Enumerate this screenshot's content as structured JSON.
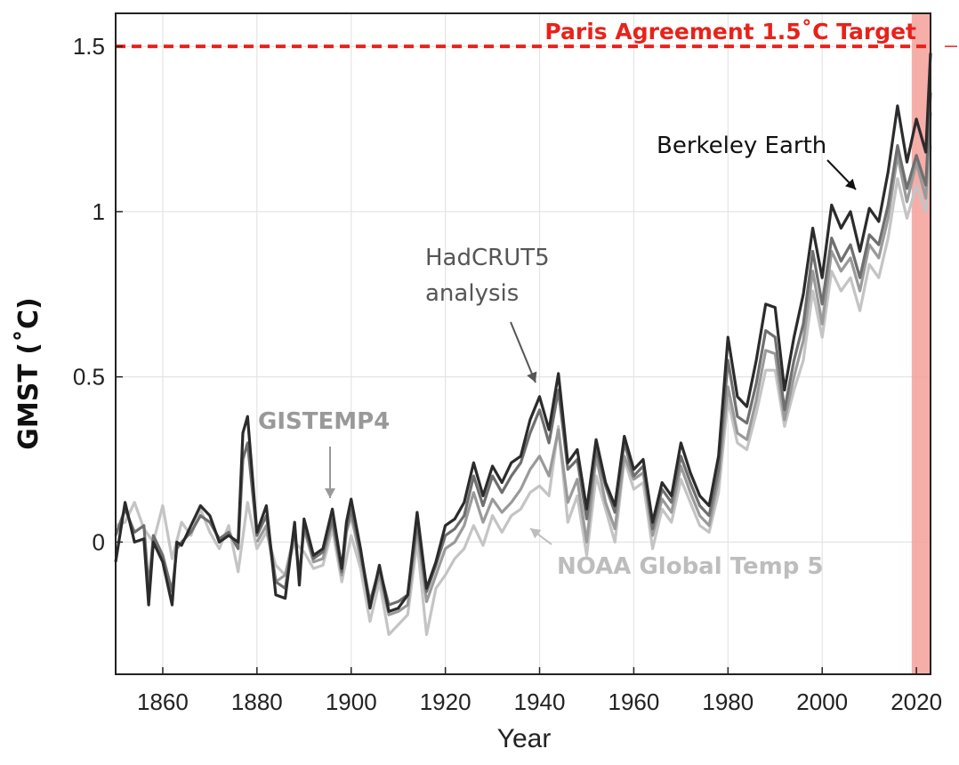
{
  "chart_data": {
    "type": "line",
    "xlabel": "Year",
    "ylabel": "GMST (˚C)",
    "xlim": [
      1850,
      2023
    ],
    "ylim": [
      -0.4,
      1.6
    ],
    "x_ticks": [
      1860,
      1880,
      1900,
      1920,
      1940,
      1960,
      1980,
      2000,
      2020
    ],
    "y_ticks": [
      {
        "value": 0,
        "label": "0"
      },
      {
        "value": 0.5,
        "label": "0.5"
      },
      {
        "value": 1,
        "label": "1"
      },
      {
        "value": 1.5,
        "label": "1.5"
      }
    ],
    "grid": true,
    "threshold": {
      "value": 1.5,
      "label": "Paris Agreement 1.5˚C Target",
      "color": "#e8221a"
    },
    "highlight_span": {
      "x_start": 2019,
      "x_end": 2023,
      "color": "#f4a09a"
    },
    "series": [
      {
        "name": "Berkeley Earth",
        "color": "#2b2b2b",
        "x": [
          1850,
          1852,
          1854,
          1856,
          1857,
          1858,
          1860,
          1862,
          1863,
          1864,
          1866,
          1868,
          1870,
          1872,
          1874,
          1876,
          1877,
          1878,
          1880,
          1882,
          1884,
          1886,
          1888,
          1889,
          1890,
          1892,
          1894,
          1896,
          1898,
          1899,
          1900,
          1902,
          1904,
          1906,
          1908,
          1910,
          1912,
          1914,
          1916,
          1918,
          1920,
          1922,
          1924,
          1926,
          1928,
          1930,
          1932,
          1934,
          1936,
          1938,
          1940,
          1942,
          1944,
          1946,
          1948,
          1950,
          1952,
          1954,
          1956,
          1958,
          1960,
          1962,
          1964,
          1966,
          1968,
          1970,
          1972,
          1974,
          1976,
          1978,
          1980,
          1982,
          1984,
          1986,
          1988,
          1990,
          1992,
          1994,
          1996,
          1998,
          2000,
          2002,
          2004,
          2006,
          2008,
          2010,
          2012,
          2014,
          2016,
          2018,
          2020,
          2022,
          2023
        ],
        "y": [
          -0.06,
          0.12,
          0.0,
          0.01,
          -0.19,
          0.0,
          -0.06,
          -0.19,
          0.0,
          -0.01,
          0.05,
          0.11,
          0.08,
          0.0,
          0.02,
          0.0,
          0.33,
          0.38,
          0.03,
          0.11,
          -0.16,
          -0.17,
          0.06,
          -0.13,
          0.07,
          -0.04,
          -0.02,
          0.1,
          -0.08,
          0.06,
          0.13,
          -0.02,
          -0.2,
          -0.07,
          -0.21,
          -0.2,
          -0.16,
          0.09,
          -0.14,
          -0.06,
          0.05,
          0.07,
          0.12,
          0.24,
          0.14,
          0.23,
          0.18,
          0.24,
          0.26,
          0.37,
          0.44,
          0.34,
          0.51,
          0.24,
          0.28,
          0.1,
          0.31,
          0.18,
          0.11,
          0.32,
          0.22,
          0.25,
          0.06,
          0.18,
          0.14,
          0.3,
          0.21,
          0.14,
          0.11,
          0.26,
          0.62,
          0.44,
          0.41,
          0.55,
          0.72,
          0.71,
          0.46,
          0.62,
          0.75,
          0.95,
          0.8,
          1.02,
          0.95,
          1.0,
          0.88,
          1.01,
          0.97,
          1.12,
          1.32,
          1.15,
          1.28,
          1.18,
          1.48
        ]
      },
      {
        "name": "HadCRUT5 analysis",
        "color": "#6f6f6f",
        "x": [
          1850,
          1852,
          1854,
          1856,
          1857,
          1858,
          1860,
          1862,
          1863,
          1864,
          1866,
          1868,
          1870,
          1872,
          1874,
          1876,
          1877,
          1878,
          1880,
          1882,
          1884,
          1886,
          1888,
          1889,
          1890,
          1892,
          1894,
          1896,
          1898,
          1899,
          1900,
          1902,
          1904,
          1906,
          1908,
          1910,
          1912,
          1914,
          1916,
          1918,
          1920,
          1922,
          1924,
          1926,
          1928,
          1930,
          1932,
          1934,
          1936,
          1938,
          1940,
          1942,
          1944,
          1946,
          1948,
          1950,
          1952,
          1954,
          1956,
          1958,
          1960,
          1962,
          1964,
          1966,
          1968,
          1970,
          1972,
          1974,
          1976,
          1978,
          1980,
          1982,
          1984,
          1986,
          1988,
          1990,
          1992,
          1994,
          1996,
          1998,
          2000,
          2002,
          2004,
          2006,
          2008,
          2010,
          2012,
          2014,
          2016,
          2018,
          2020,
          2022,
          2023
        ],
        "y": [
          0.02,
          0.1,
          0.03,
          0.05,
          -0.14,
          0.02,
          -0.04,
          -0.15,
          -0.02,
          0.0,
          0.03,
          0.08,
          0.06,
          0.01,
          0.03,
          -0.02,
          0.25,
          0.3,
          0.02,
          0.08,
          -0.12,
          -0.14,
          0.04,
          -0.11,
          0.05,
          -0.05,
          -0.03,
          0.07,
          -0.09,
          0.04,
          0.1,
          -0.03,
          -0.18,
          -0.08,
          -0.19,
          -0.18,
          -0.16,
          0.06,
          -0.15,
          -0.07,
          0.02,
          0.04,
          0.08,
          0.2,
          0.11,
          0.2,
          0.15,
          0.2,
          0.24,
          0.33,
          0.4,
          0.3,
          0.46,
          0.22,
          0.25,
          0.07,
          0.28,
          0.17,
          0.09,
          0.3,
          0.2,
          0.23,
          0.04,
          0.16,
          0.12,
          0.26,
          0.18,
          0.11,
          0.08,
          0.22,
          0.55,
          0.38,
          0.36,
          0.48,
          0.64,
          0.62,
          0.4,
          0.55,
          0.66,
          0.88,
          0.72,
          0.92,
          0.85,
          0.9,
          0.8,
          0.93,
          0.9,
          1.02,
          1.2,
          1.07,
          1.17,
          1.08,
          1.36
        ]
      },
      {
        "name": "GISTEMP4",
        "color": "#9a9a9a",
        "x": [
          1880,
          1882,
          1884,
          1886,
          1888,
          1889,
          1890,
          1892,
          1894,
          1896,
          1898,
          1899,
          1900,
          1902,
          1904,
          1906,
          1908,
          1910,
          1912,
          1914,
          1916,
          1918,
          1920,
          1922,
          1924,
          1926,
          1928,
          1930,
          1932,
          1934,
          1936,
          1938,
          1940,
          1942,
          1944,
          1946,
          1948,
          1950,
          1952,
          1954,
          1956,
          1958,
          1960,
          1962,
          1964,
          1966,
          1968,
          1970,
          1972,
          1974,
          1976,
          1978,
          1980,
          1982,
          1984,
          1986,
          1988,
          1990,
          1992,
          1994,
          1996,
          1998,
          2000,
          2002,
          2004,
          2006,
          2008,
          2010,
          2012,
          2014,
          2016,
          2018,
          2020,
          2022,
          2023
        ],
        "y": [
          0.0,
          0.05,
          -0.12,
          -0.1,
          0.03,
          -0.1,
          0.04,
          -0.06,
          -0.05,
          0.06,
          -0.1,
          0.03,
          0.08,
          -0.05,
          -0.19,
          -0.1,
          -0.22,
          -0.21,
          -0.19,
          0.04,
          -0.18,
          -0.1,
          -0.02,
          0.0,
          0.05,
          0.15,
          0.06,
          0.13,
          0.09,
          0.12,
          0.16,
          0.22,
          0.26,
          0.2,
          0.34,
          0.12,
          0.19,
          0.0,
          0.26,
          0.12,
          0.04,
          0.26,
          0.19,
          0.21,
          0.02,
          0.13,
          0.09,
          0.23,
          0.15,
          0.08,
          0.05,
          0.19,
          0.47,
          0.33,
          0.31,
          0.43,
          0.58,
          0.57,
          0.37,
          0.5,
          0.61,
          0.82,
          0.66,
          0.88,
          0.82,
          0.86,
          0.76,
          0.9,
          0.86,
          0.98,
          1.17,
          1.03,
          1.15,
          1.04,
          1.3
        ]
      },
      {
        "name": "NOAA Global Temp 5",
        "color": "#c4c4c4",
        "x": [
          1850,
          1852,
          1854,
          1856,
          1858,
          1860,
          1862,
          1864,
          1866,
          1868,
          1870,
          1872,
          1874,
          1876,
          1878,
          1880,
          1882,
          1884,
          1886,
          1888,
          1890,
          1892,
          1894,
          1896,
          1898,
          1900,
          1902,
          1904,
          1906,
          1908,
          1910,
          1912,
          1914,
          1916,
          1918,
          1920,
          1922,
          1924,
          1926,
          1928,
          1930,
          1932,
          1934,
          1936,
          1938,
          1940,
          1942,
          1944,
          1946,
          1948,
          1950,
          1952,
          1954,
          1956,
          1958,
          1960,
          1962,
          1964,
          1966,
          1968,
          1970,
          1972,
          1974,
          1976,
          1978,
          1980,
          1982,
          1984,
          1986,
          1988,
          1990,
          1992,
          1994,
          1996,
          1998,
          2000,
          2002,
          2004,
          2006,
          2008,
          2010,
          2012,
          2014,
          2016,
          2018,
          2020,
          2022,
          2023
        ],
        "y": [
          0.05,
          0.06,
          0.12,
          0.04,
          0.0,
          0.11,
          -0.05,
          0.06,
          0.02,
          0.1,
          0.03,
          -0.02,
          0.05,
          -0.09,
          0.12,
          -0.02,
          0.03,
          -0.07,
          -0.1,
          0.0,
          -0.03,
          -0.08,
          -0.07,
          0.04,
          -0.12,
          0.02,
          -0.08,
          -0.24,
          -0.12,
          -0.28,
          -0.25,
          -0.22,
          0.0,
          -0.28,
          -0.14,
          -0.1,
          -0.05,
          -0.02,
          0.05,
          -0.01,
          0.08,
          0.03,
          0.08,
          0.1,
          0.15,
          0.17,
          0.14,
          0.35,
          0.06,
          0.14,
          -0.04,
          0.2,
          0.1,
          0.0,
          0.25,
          0.16,
          0.18,
          -0.02,
          0.1,
          0.06,
          0.19,
          0.12,
          0.05,
          0.03,
          0.15,
          0.43,
          0.3,
          0.28,
          0.39,
          0.52,
          0.52,
          0.35,
          0.46,
          0.55,
          0.76,
          0.62,
          0.82,
          0.76,
          0.8,
          0.7,
          0.84,
          0.8,
          0.92,
          1.1,
          0.98,
          1.08,
          1.0,
          1.2
        ]
      }
    ],
    "annotations": [
      {
        "text_lines": [
          "Berkeley Earth"
        ],
        "color": "#111111"
      },
      {
        "text_lines": [
          "HadCRUT5",
          "analysis"
        ],
        "color": "#555555"
      },
      {
        "text_lines": [
          "GISTEMP4"
        ],
        "color": "#999999"
      },
      {
        "text_lines": [
          "NOAA Global Temp 5"
        ],
        "color": "#bdbdbd"
      }
    ]
  }
}
